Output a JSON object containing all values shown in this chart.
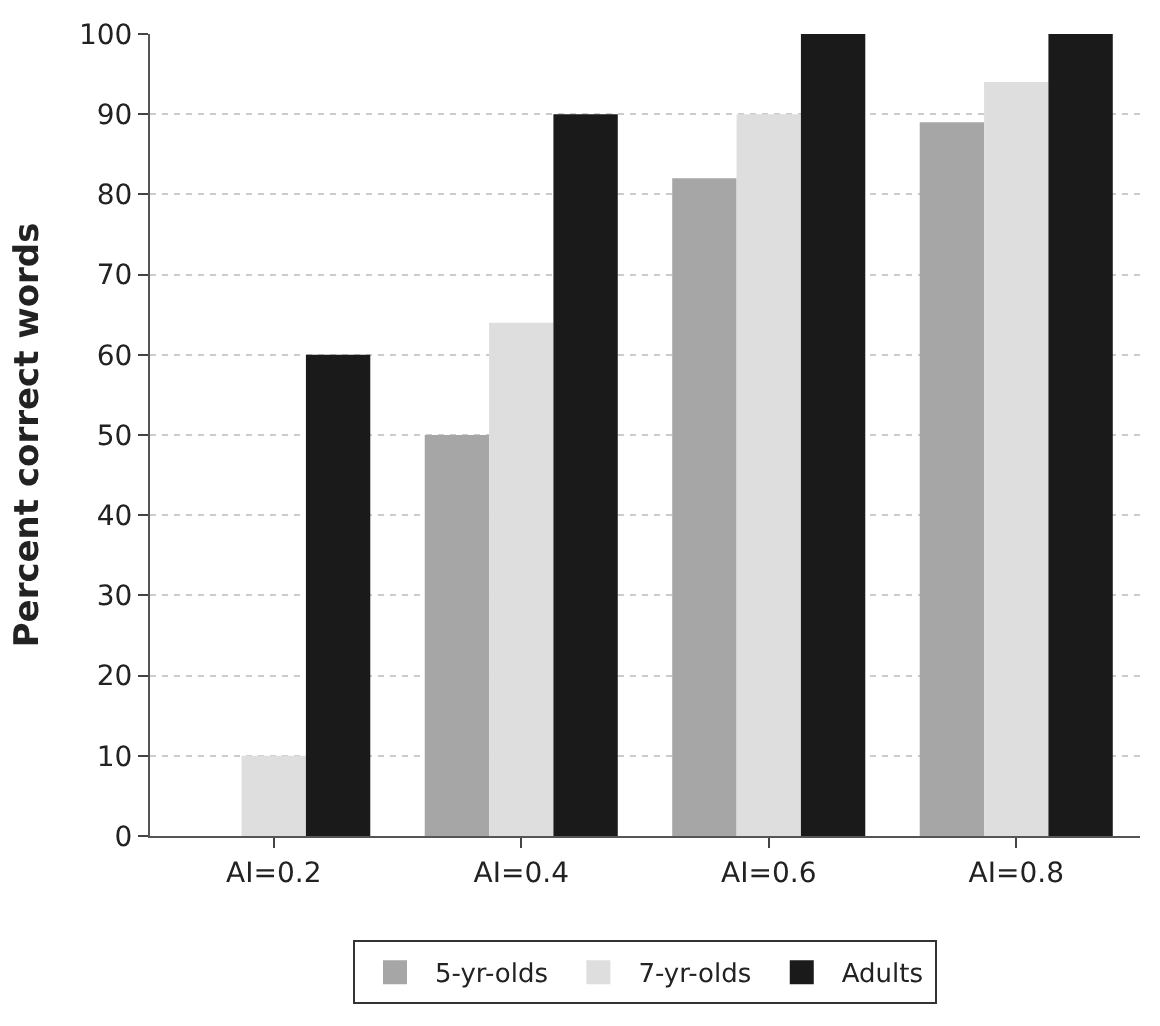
{
  "chart_data": {
    "type": "bar",
    "ylabel": "Percent correct words",
    "categories": [
      "AI=0.2",
      "AI=0.4",
      "AI=0.6",
      "AI=0.8"
    ],
    "series": [
      {
        "name": "5-yr-olds",
        "color": "#a6a6a6",
        "values": [
          0,
          50,
          82,
          89
        ]
      },
      {
        "name": "7-yr-olds",
        "color": "#dedede",
        "values": [
          10,
          64,
          90,
          94
        ]
      },
      {
        "name": "Adults",
        "color": "#1a1a1a",
        "values": [
          60,
          90,
          100,
          100
        ]
      }
    ],
    "ylim": [
      0,
      100
    ],
    "yticks": [
      0,
      10,
      20,
      30,
      40,
      50,
      60,
      70,
      80,
      90,
      100
    ],
    "grid": "y",
    "legend": "bottom"
  }
}
